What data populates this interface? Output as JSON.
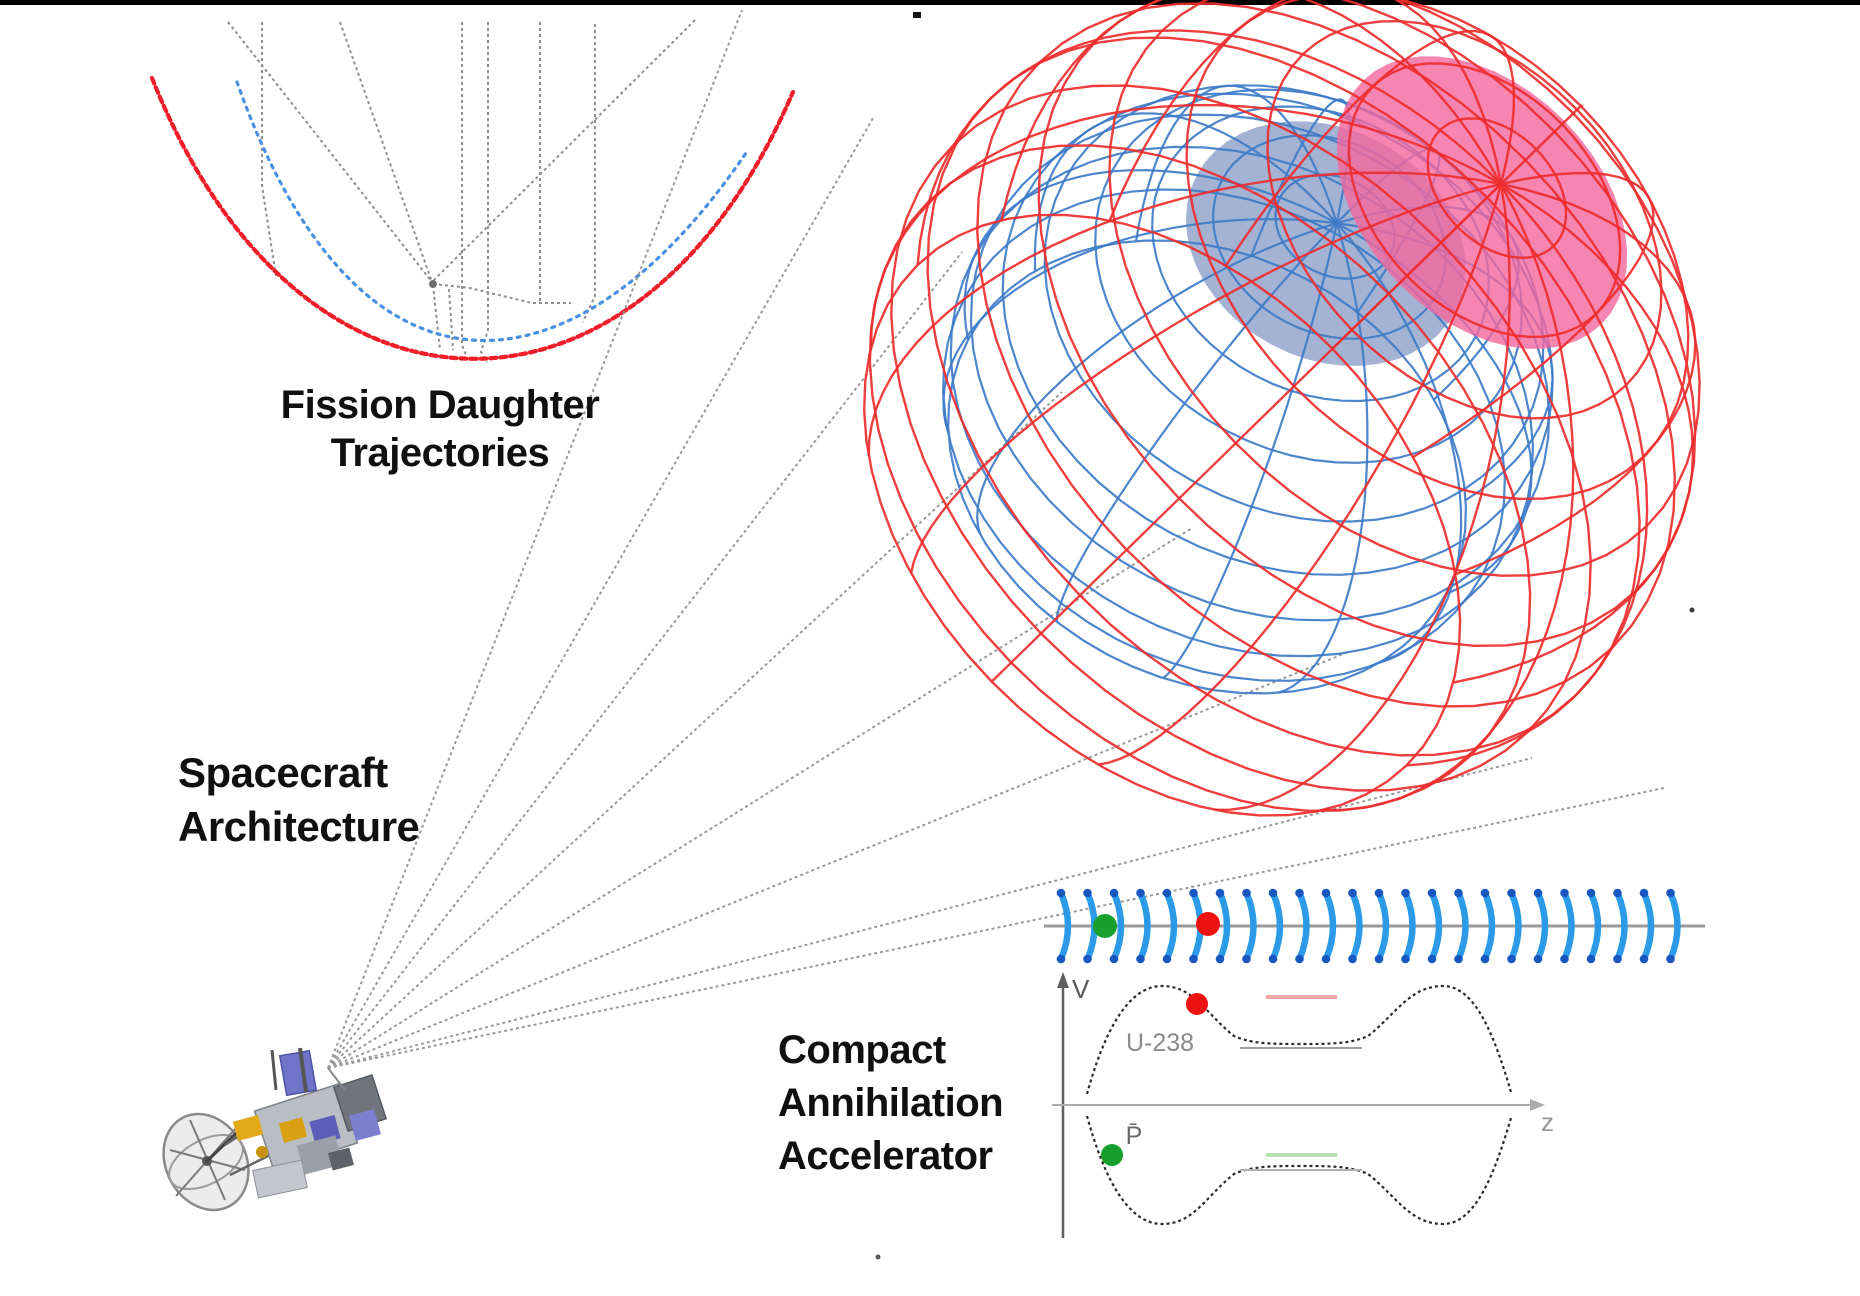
{
  "page": {
    "background": "#ffffff",
    "top_border_color": "#000000"
  },
  "labels": {
    "fission_trajectories": {
      "line1": "Fission Daughter",
      "line2": "Trajectories"
    },
    "spacecraft_architecture": {
      "line1": "Spacecraft",
      "line2": "Architecture"
    },
    "compact_accelerator": {
      "line1": "Compact",
      "line2": "Annihilation",
      "line3": "Accelerator"
    }
  },
  "fission_plot": {
    "heavy_daughter_color": "#f01e28",
    "light_daughter_color": "#4a90e0",
    "ion_track_color": "#8f8f8f"
  },
  "sail": {
    "outer_mesh_color": "#ee2e2e",
    "inner_mesh_color": "#3e7cc8",
    "pole_patch_color": "#f4679d",
    "inner_pole_patch_color": "#1c3f92",
    "tether_color": "#9a9a9a"
  },
  "spacecraft_render": {
    "dish_color": "#8a8a8a",
    "body_color": "#b9bdc4",
    "panel_color": "#6f74c8",
    "detail_gold_color": "#e2a918"
  },
  "accelerator_diagram": {
    "rf_wave_color": "#2b9be8",
    "rf_wave_tip_color": "#1857c0",
    "beamline_color": "#999999",
    "antiproton_color": "#16a02c",
    "fission_fragment_color": "#ee1212",
    "potential_curve_color": "#2a2a2a",
    "upper_level_color": "#f7a6a6",
    "lower_level_color": "#b5e0ae",
    "axis_v_label": "V",
    "axis_z_label": "z",
    "well_label": "U-238",
    "antiproton_label": "P̄"
  }
}
